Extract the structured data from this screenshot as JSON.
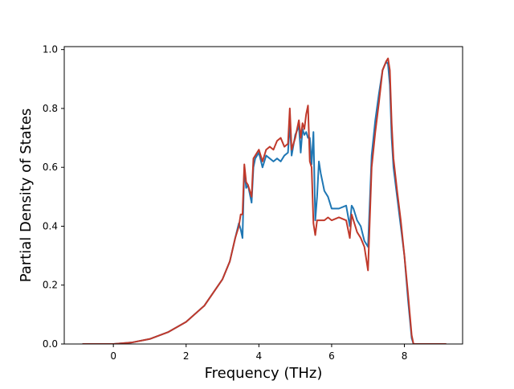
{
  "chart_data": {
    "type": "line",
    "title": "",
    "xlabel": "Frequency (THz)",
    "ylabel": "Partial Density of States",
    "xlim": [
      -1.35,
      9.6
    ],
    "ylim": [
      0.0,
      1.01
    ],
    "xticks": [
      0,
      2,
      4,
      6,
      8
    ],
    "yticks": [
      0.0,
      0.2,
      0.4,
      0.6,
      0.8,
      1.0
    ],
    "xtick_labels": [
      "0",
      "2",
      "4",
      "6",
      "8"
    ],
    "ytick_labels": [
      "0.0",
      "0.2",
      "0.4",
      "0.6",
      "0.8",
      "1.0"
    ],
    "grid": false,
    "legend": "none",
    "series": [
      {
        "color": "#1f77b4",
        "x": [
          -0.85,
          0.0,
          0.5,
          1.0,
          1.5,
          2.0,
          2.5,
          3.0,
          3.2,
          3.35,
          3.45,
          3.5,
          3.55,
          3.6,
          3.65,
          3.7,
          3.8,
          3.85,
          3.9,
          4.0,
          4.1,
          4.2,
          4.3,
          4.4,
          4.5,
          4.6,
          4.7,
          4.8,
          4.85,
          4.9,
          5.0,
          5.1,
          5.15,
          5.2,
          5.25,
          5.3,
          5.35,
          5.4,
          5.45,
          5.5,
          5.55,
          5.6,
          5.65,
          5.7,
          5.8,
          5.9,
          6.0,
          6.2,
          6.4,
          6.5,
          6.55,
          6.6,
          6.7,
          6.8,
          6.9,
          7.0,
          7.1,
          7.2,
          7.3,
          7.4,
          7.5,
          7.55,
          7.6,
          7.65,
          7.7,
          7.8,
          7.9,
          8.0,
          8.1,
          8.2,
          8.25,
          8.3,
          8.5,
          9.15
        ],
        "y": [
          0.0,
          0.0,
          0.005,
          0.017,
          0.04,
          0.075,
          0.13,
          0.22,
          0.28,
          0.36,
          0.41,
          0.39,
          0.36,
          0.6,
          0.53,
          0.54,
          0.48,
          0.6,
          0.63,
          0.65,
          0.6,
          0.64,
          0.63,
          0.62,
          0.63,
          0.62,
          0.64,
          0.65,
          0.75,
          0.64,
          0.71,
          0.74,
          0.65,
          0.73,
          0.71,
          0.72,
          0.7,
          0.7,
          0.61,
          0.72,
          0.42,
          0.5,
          0.62,
          0.58,
          0.52,
          0.5,
          0.46,
          0.46,
          0.47,
          0.4,
          0.47,
          0.46,
          0.42,
          0.4,
          0.35,
          0.33,
          0.64,
          0.76,
          0.85,
          0.93,
          0.96,
          0.95,
          0.88,
          0.7,
          0.6,
          0.5,
          0.4,
          0.3,
          0.15,
          0.02,
          0.0,
          0.0,
          0.0,
          0.0
        ]
      },
      {
        "color": "#c0392b",
        "x": [
          -0.85,
          0.0,
          0.5,
          1.0,
          1.5,
          2.0,
          2.5,
          3.0,
          3.2,
          3.35,
          3.45,
          3.5,
          3.55,
          3.6,
          3.65,
          3.7,
          3.8,
          3.85,
          3.9,
          4.0,
          4.1,
          4.2,
          4.3,
          4.4,
          4.5,
          4.6,
          4.7,
          4.8,
          4.85,
          4.9,
          5.0,
          5.1,
          5.15,
          5.2,
          5.25,
          5.3,
          5.35,
          5.4,
          5.45,
          5.5,
          5.55,
          5.6,
          5.65,
          5.7,
          5.8,
          5.9,
          6.0,
          6.2,
          6.4,
          6.5,
          6.55,
          6.6,
          6.7,
          6.8,
          6.9,
          7.0,
          7.1,
          7.2,
          7.3,
          7.4,
          7.5,
          7.55,
          7.6,
          7.65,
          7.7,
          7.8,
          7.9,
          8.0,
          8.1,
          8.2,
          8.25,
          8.3,
          8.5,
          9.15
        ],
        "y": [
          0.0,
          0.0,
          0.005,
          0.017,
          0.04,
          0.075,
          0.13,
          0.22,
          0.28,
          0.36,
          0.4,
          0.44,
          0.44,
          0.61,
          0.55,
          0.54,
          0.5,
          0.63,
          0.64,
          0.66,
          0.62,
          0.66,
          0.67,
          0.66,
          0.69,
          0.7,
          0.67,
          0.68,
          0.8,
          0.66,
          0.7,
          0.76,
          0.7,
          0.75,
          0.73,
          0.78,
          0.81,
          0.62,
          0.6,
          0.41,
          0.37,
          0.42,
          0.42,
          0.42,
          0.42,
          0.43,
          0.42,
          0.43,
          0.42,
          0.36,
          0.44,
          0.42,
          0.38,
          0.36,
          0.33,
          0.25,
          0.6,
          0.72,
          0.82,
          0.93,
          0.96,
          0.97,
          0.93,
          0.75,
          0.63,
          0.52,
          0.42,
          0.3,
          0.17,
          0.03,
          0.0,
          0.0,
          0.0,
          0.0
        ]
      }
    ]
  }
}
